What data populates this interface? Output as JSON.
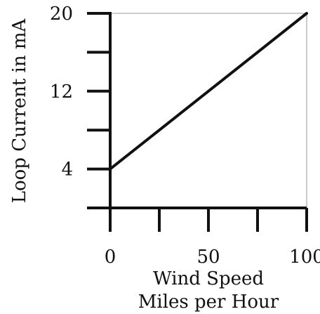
{
  "chart_data": {
    "type": "line",
    "xlabel": "Wind Speed",
    "xlabel_line2": "Miles per Hour",
    "ylabel": "Loop Current in mA",
    "xlim": [
      0,
      100
    ],
    "ylim": [
      0,
      20
    ],
    "x_ticks": [
      0,
      25,
      50,
      75,
      100
    ],
    "x_tick_labels": [
      "0",
      "50",
      "100"
    ],
    "x_tick_label_values": [
      0,
      50,
      100
    ],
    "y_ticks": [
      4,
      8,
      12,
      16,
      20
    ],
    "y_tick_labels": [
      "4",
      "12",
      "20"
    ],
    "y_tick_label_values": [
      4,
      12,
      20
    ],
    "series": [
      {
        "x": [
          0,
          100
        ],
        "y": [
          4,
          20
        ]
      }
    ],
    "grid": false,
    "colors": {
      "line": "#111111",
      "frame": "#9a9a9a"
    }
  }
}
